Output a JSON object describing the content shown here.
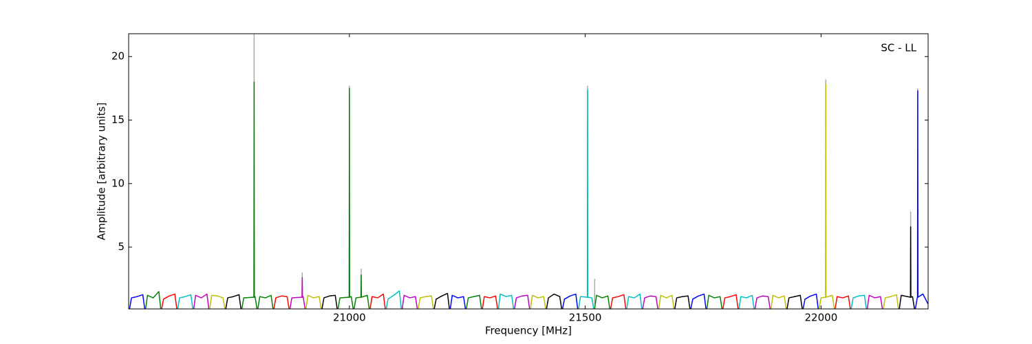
{
  "chart_data": {
    "type": "line",
    "annotation": "SC - LL",
    "xlabel": "Frequency [MHz]",
    "ylabel": "Amplitude [arbitrary units]",
    "xlim": [
      20532,
      22227
    ],
    "ylim": [
      0.13,
      21.8
    ],
    "xticks": [
      21000,
      21500,
      22000
    ],
    "yticks": [
      5,
      10,
      15,
      20
    ],
    "series": [
      {
        "color": "#aaaaaa",
        "x": [
          20798,
          20798,
          20798,
          20900,
          20900,
          20900,
          21000,
          21000,
          21000,
          21025,
          21025,
          21025,
          21505,
          21505,
          21505,
          21520,
          21520,
          21520,
          22010,
          22010,
          22010,
          22190,
          22190,
          22190,
          22205,
          22205
        ],
        "values": [
          1,
          21.8,
          null,
          1,
          3.0,
          null,
          1,
          17.7,
          null,
          1,
          3.3,
          null,
          1,
          17.7,
          null,
          0.5,
          2.5,
          null,
          1,
          18.2,
          null,
          1,
          7.8,
          null,
          1,
          17.5
        ]
      },
      {
        "color": "#0000ff",
        "x": [
          20534,
          20538,
          20550,
          20562,
          20566
        ],
        "values": [
          0.15,
          1.0,
          1.1,
          1.25,
          0.15
        ]
      },
      {
        "color": "#008000",
        "x": [
          20568,
          20572,
          20584,
          20596,
          20600
        ],
        "values": [
          0.15,
          1.2,
          1.0,
          1.5,
          0.15
        ]
      },
      {
        "color": "#ff0000",
        "x": [
          20602,
          20606,
          20618,
          20630,
          20634
        ],
        "values": [
          0.15,
          0.9,
          1.15,
          1.3,
          0.15
        ]
      },
      {
        "color": "#00bfbf",
        "x": [
          20636,
          20640,
          20652,
          20664,
          20668
        ],
        "values": [
          0.15,
          1.0,
          1.1,
          1.25,
          0.15
        ]
      },
      {
        "color": "#bf00bf",
        "x": [
          20670,
          20674,
          20686,
          20698,
          20702
        ],
        "values": [
          0.15,
          1.2,
          1.0,
          1.3,
          0.15
        ]
      },
      {
        "color": "#bfbf00",
        "x": [
          20704,
          20708,
          20720,
          20732,
          20736
        ],
        "values": [
          0.15,
          1.2,
          1.15,
          1.0,
          0.15
        ]
      },
      {
        "color": "#000000",
        "x": [
          20738,
          20742,
          20754,
          20766,
          20770
        ],
        "values": [
          0.15,
          1.0,
          1.1,
          1.25,
          0.15
        ]
      },
      {
        "color": "#008000",
        "x": [
          20772,
          20776,
          20797.5,
          20798,
          20798.5,
          20800,
          20804
        ],
        "values": [
          0.15,
          1.0,
          1.05,
          18.0,
          1.05,
          1.1,
          0.15
        ]
      },
      {
        "color": "#008000",
        "x": [
          20806,
          20810,
          20822,
          20834,
          20838
        ],
        "values": [
          0.15,
          1.1,
          1.0,
          1.2,
          0.15
        ]
      },
      {
        "color": "#ff0000",
        "x": [
          20840,
          20844,
          20856,
          20868,
          20872
        ],
        "values": [
          0.15,
          1.0,
          1.15,
          1.1,
          0.15
        ]
      },
      {
        "color": "#bf00bf",
        "x": [
          20874,
          20878,
          20899.5,
          20900,
          20900.5,
          20902,
          20906
        ],
        "values": [
          0.15,
          1.0,
          1.05,
          2.6,
          1.05,
          1.1,
          0.15
        ]
      },
      {
        "color": "#bfbf00",
        "x": [
          20908,
          20912,
          20924,
          20936,
          20940
        ],
        "values": [
          0.15,
          1.2,
          1.0,
          1.1,
          0.15
        ]
      },
      {
        "color": "#000000",
        "x": [
          20942,
          20946,
          20958,
          20970,
          20974
        ],
        "values": [
          0.15,
          1.0,
          1.15,
          1.2,
          0.15
        ]
      },
      {
        "color": "#008000",
        "x": [
          20976,
          20980,
          20999.5,
          21000,
          21000.5,
          21004,
          21008
        ],
        "values": [
          0.15,
          1.0,
          1.05,
          17.5,
          1.05,
          1.1,
          0.15
        ]
      },
      {
        "color": "#008000",
        "x": [
          21010,
          21014,
          21024.5,
          21025,
          21025.5,
          21038,
          21042
        ],
        "values": [
          0.15,
          1.0,
          1.05,
          2.8,
          1.05,
          1.2,
          0.15
        ]
      },
      {
        "color": "#ff0000",
        "x": [
          21044,
          21048,
          21060,
          21072,
          21076
        ],
        "values": [
          0.15,
          1.1,
          1.0,
          1.3,
          0.15
        ]
      },
      {
        "color": "#00bfbf",
        "x": [
          21078,
          21082,
          21094,
          21106,
          21110
        ],
        "values": [
          0.15,
          0.9,
          1.2,
          1.55,
          0.15
        ]
      },
      {
        "color": "#bf00bf",
        "x": [
          21112,
          21116,
          21128,
          21140,
          21144
        ],
        "values": [
          0.15,
          1.2,
          1.0,
          1.1,
          0.15
        ]
      },
      {
        "color": "#bfbf00",
        "x": [
          21146,
          21150,
          21162,
          21174,
          21178
        ],
        "values": [
          0.15,
          1.0,
          1.1,
          1.15,
          0.15
        ]
      },
      {
        "color": "#000000",
        "x": [
          21180,
          21184,
          21196,
          21208,
          21212
        ],
        "values": [
          0.15,
          0.9,
          1.15,
          1.35,
          0.15
        ]
      },
      {
        "color": "#0000ff",
        "x": [
          21214,
          21218,
          21230,
          21242,
          21246
        ],
        "values": [
          0.15,
          1.2,
          1.0,
          1.1,
          0.15
        ]
      },
      {
        "color": "#008000",
        "x": [
          21248,
          21252,
          21264,
          21276,
          21280
        ],
        "values": [
          0.15,
          1.0,
          1.1,
          1.2,
          0.15
        ]
      },
      {
        "color": "#ff0000",
        "x": [
          21282,
          21286,
          21298,
          21310,
          21314
        ],
        "values": [
          0.15,
          1.1,
          1.0,
          1.15,
          0.15
        ]
      },
      {
        "color": "#00bfbf",
        "x": [
          21316,
          21320,
          21332,
          21344,
          21348
        ],
        "values": [
          0.15,
          1.3,
          1.1,
          1.2,
          0.15
        ]
      },
      {
        "color": "#bf00bf",
        "x": [
          21350,
          21354,
          21366,
          21378,
          21382
        ],
        "values": [
          0.15,
          1.0,
          1.15,
          1.2,
          0.15
        ]
      },
      {
        "color": "#bfbf00",
        "x": [
          21384,
          21388,
          21400,
          21412,
          21416
        ],
        "values": [
          0.15,
          1.2,
          1.0,
          1.1,
          0.15
        ]
      },
      {
        "color": "#000000",
        "x": [
          21418,
          21422,
          21434,
          21446,
          21450
        ],
        "values": [
          0.15,
          1.0,
          1.3,
          1.1,
          0.15
        ]
      },
      {
        "color": "#0000ff",
        "x": [
          21452,
          21456,
          21468,
          21480,
          21484
        ],
        "values": [
          0.15,
          0.9,
          1.15,
          1.3,
          0.15
        ]
      },
      {
        "color": "#00bfbf",
        "x": [
          21486,
          21490,
          21504.5,
          21505,
          21505.5,
          21514,
          21518
        ],
        "values": [
          0.15,
          1.1,
          1.05,
          17.4,
          1.05,
          1.0,
          0.15
        ]
      },
      {
        "color": "#008000",
        "x": [
          21520,
          21524,
          21536,
          21548,
          21552
        ],
        "values": [
          0.15,
          1.2,
          1.0,
          1.15,
          0.15
        ]
      },
      {
        "color": "#ff0000",
        "x": [
          21554,
          21558,
          21570,
          21582,
          21586
        ],
        "values": [
          0.15,
          1.0,
          1.1,
          1.25,
          0.15
        ]
      },
      {
        "color": "#00bfbf",
        "x": [
          21588,
          21592,
          21604,
          21616,
          21620
        ],
        "values": [
          0.15,
          1.1,
          1.0,
          1.3,
          0.15
        ]
      },
      {
        "color": "#bf00bf",
        "x": [
          21622,
          21626,
          21638,
          21650,
          21654
        ],
        "values": [
          0.15,
          1.0,
          1.15,
          1.1,
          0.15
        ]
      },
      {
        "color": "#bfbf00",
        "x": [
          21656,
          21660,
          21672,
          21684,
          21688
        ],
        "values": [
          0.15,
          1.2,
          1.0,
          1.2,
          0.15
        ]
      },
      {
        "color": "#000000",
        "x": [
          21690,
          21694,
          21706,
          21718,
          21722
        ],
        "values": [
          0.15,
          1.0,
          1.1,
          1.15,
          0.15
        ]
      },
      {
        "color": "#0000ff",
        "x": [
          21724,
          21728,
          21740,
          21752,
          21756
        ],
        "values": [
          0.15,
          0.9,
          1.15,
          1.3,
          0.15
        ]
      },
      {
        "color": "#008000",
        "x": [
          21758,
          21762,
          21774,
          21786,
          21790
        ],
        "values": [
          0.15,
          1.2,
          1.0,
          1.1,
          0.15
        ]
      },
      {
        "color": "#ff0000",
        "x": [
          21792,
          21796,
          21808,
          21820,
          21824
        ],
        "values": [
          0.15,
          1.0,
          1.1,
          1.25,
          0.15
        ]
      },
      {
        "color": "#00bfbf",
        "x": [
          21826,
          21830,
          21842,
          21854,
          21858
        ],
        "values": [
          0.15,
          1.1,
          1.0,
          1.2,
          0.15
        ]
      },
      {
        "color": "#bf00bf",
        "x": [
          21860,
          21864,
          21876,
          21888,
          21892
        ],
        "values": [
          0.15,
          1.0,
          1.15,
          1.1,
          0.15
        ]
      },
      {
        "color": "#bfbf00",
        "x": [
          21894,
          21898,
          21910,
          21922,
          21926
        ],
        "values": [
          0.15,
          1.2,
          1.0,
          1.15,
          0.15
        ]
      },
      {
        "color": "#000000",
        "x": [
          21928,
          21932,
          21944,
          21956,
          21960
        ],
        "values": [
          0.15,
          1.0,
          1.1,
          1.2,
          0.15
        ]
      },
      {
        "color": "#0000ff",
        "x": [
          21962,
          21966,
          21978,
          21990,
          21994
        ],
        "values": [
          0.15,
          0.9,
          1.15,
          1.3,
          0.15
        ]
      },
      {
        "color": "#bfbf00",
        "x": [
          21996,
          22000,
          22009.5,
          22010,
          22010.5,
          22024,
          22028
        ],
        "values": [
          0.15,
          1.0,
          1.05,
          17.8,
          1.05,
          1.2,
          0.15
        ]
      },
      {
        "color": "#ff0000",
        "x": [
          22030,
          22034,
          22046,
          22058,
          22062
        ],
        "values": [
          0.15,
          1.1,
          1.0,
          1.15,
          0.15
        ]
      },
      {
        "color": "#00bfbf",
        "x": [
          22064,
          22068,
          22080,
          22092,
          22096
        ],
        "values": [
          0.15,
          1.0,
          1.15,
          1.2,
          0.15
        ]
      },
      {
        "color": "#bf00bf",
        "x": [
          22098,
          22102,
          22114,
          22126,
          22130
        ],
        "values": [
          0.15,
          1.2,
          1.0,
          1.1,
          0.15
        ]
      },
      {
        "color": "#bfbf00",
        "x": [
          22132,
          22136,
          22148,
          22160,
          22164
        ],
        "values": [
          0.15,
          1.0,
          1.1,
          1.25,
          0.15
        ]
      },
      {
        "color": "#000000",
        "x": [
          22166,
          22170,
          22189.5,
          22190,
          22190.5,
          22194,
          22198
        ],
        "values": [
          0.15,
          1.2,
          1.05,
          6.6,
          1.05,
          1.1,
          0.15
        ]
      },
      {
        "color": "#0000ff",
        "x": [
          22200,
          22204,
          22204.5,
          22205,
          22205.5,
          22216,
          22232
        ],
        "values": [
          0.15,
          1.0,
          1.05,
          17.3,
          1.05,
          1.3,
          0.15
        ]
      }
    ]
  }
}
